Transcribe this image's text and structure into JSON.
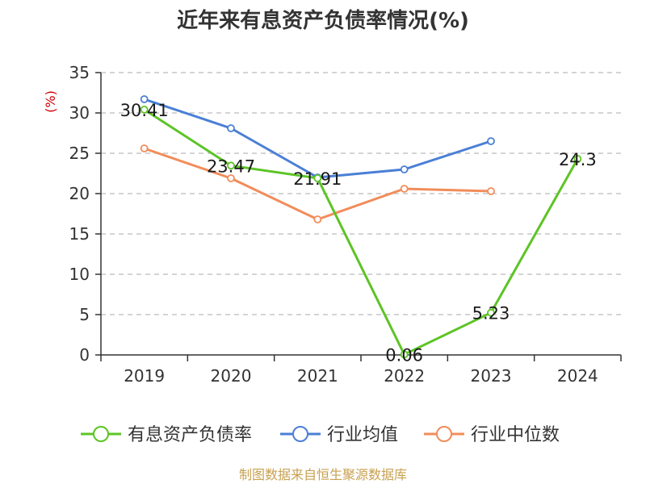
{
  "chart_data": {
    "type": "line",
    "title": "近年来有息资产负债率情况(%)",
    "ylabel": "(%)",
    "ylim": [
      0,
      35
    ],
    "yticks": [
      "0",
      "5",
      "10",
      "15",
      "20",
      "25",
      "30",
      "35"
    ],
    "categories": [
      "2019",
      "2020",
      "2021",
      "2022",
      "2023",
      "2024"
    ],
    "grid": true,
    "legend_position": "bottom",
    "series": [
      {
        "name": "有息资产负债率",
        "color": "#5cc425",
        "values": [
          30.41,
          23.47,
          21.91,
          0.06,
          5.23,
          24.3
        ],
        "labels": [
          "30.41",
          "23.47",
          "21.91",
          "0.06",
          "5.23",
          "24.3"
        ]
      },
      {
        "name": "行业均值",
        "color": "#4a7fd6",
        "values": [
          31.7,
          28.1,
          22.0,
          23.0,
          26.5,
          null
        ]
      },
      {
        "name": "行业中位数",
        "color": "#f28c5a",
        "values": [
          25.6,
          21.9,
          16.8,
          20.6,
          20.3,
          null
        ]
      }
    ]
  },
  "source": "制图数据来自恒生聚源数据库"
}
